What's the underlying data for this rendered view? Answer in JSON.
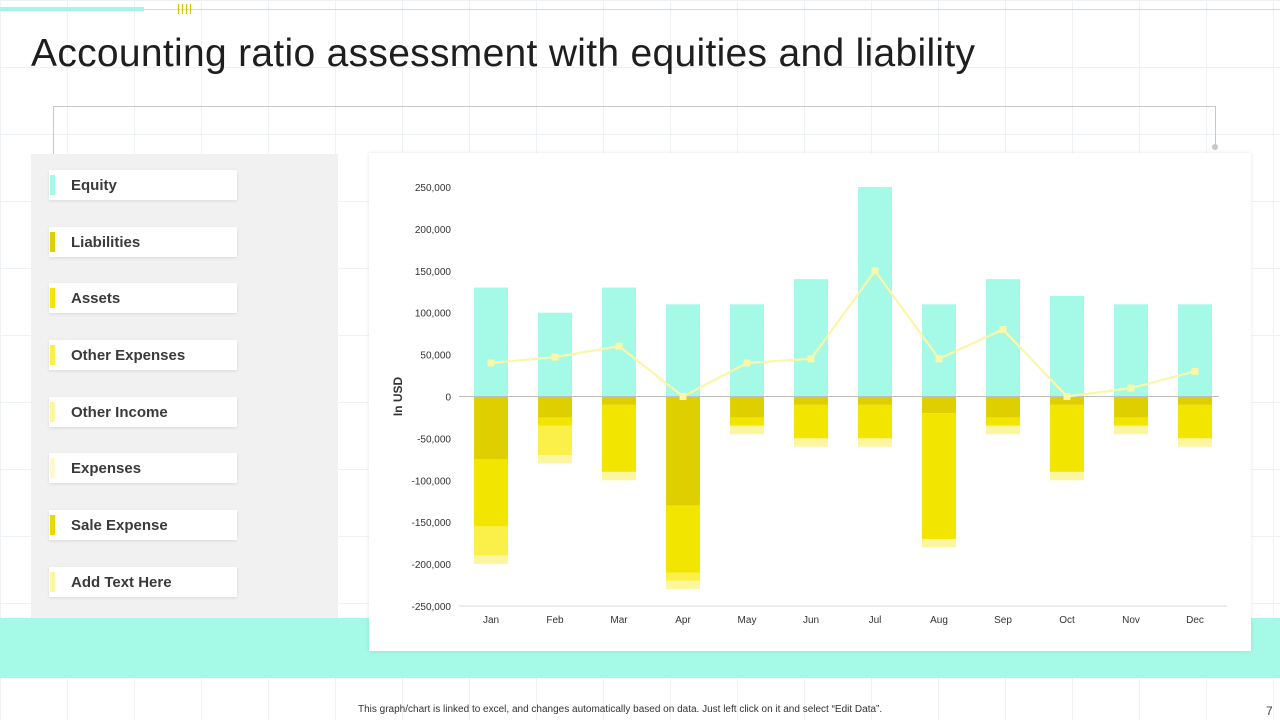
{
  "page": {
    "title": "Accounting ratio assessment with equities and liability",
    "footnote": "This graph/chart is linked to excel, and changes automatically based on data. Just left click on it and select “Edit Data”.",
    "page_number": "7"
  },
  "legend": {
    "items": [
      {
        "label": "Equity",
        "color": "#a4f9e7"
      },
      {
        "label": "Liabilities",
        "color": "#ddcf00"
      },
      {
        "label": "Assets",
        "color": "#f2e600"
      },
      {
        "label": "Other Expenses",
        "color": "#fbef4a"
      },
      {
        "label": "Other Income",
        "color": "#fdf6a0"
      },
      {
        "label": "Expenses",
        "color": "#fefad0"
      },
      {
        "label": "Sale Expense",
        "color": "#e9d900"
      },
      {
        "label": "Add  Text Here",
        "color": "#fdf6a0"
      }
    ]
  },
  "chart_data": {
    "type": "bar",
    "title": "",
    "xlabel": "",
    "ylabel": "In USD",
    "ylim": [
      -250000,
      250000
    ],
    "yticks": [
      250000,
      200000,
      150000,
      100000,
      50000,
      0,
      -50000,
      -100000,
      -150000,
      -200000,
      -250000
    ],
    "ytick_labels": [
      "250,000",
      "200,000",
      "150,000",
      "100,000",
      "50,000",
      "0",
      "-50,000",
      "-100,000",
      "-150,000",
      "-200,000",
      "-250,000"
    ],
    "categories": [
      "Jan",
      "Feb",
      "Mar",
      "Apr",
      "May",
      "Jun",
      "Jul",
      "Aug",
      "Sep",
      "Oct",
      "Nov",
      "Dec"
    ],
    "stacked": true,
    "series": [
      {
        "name": "Equity",
        "kind": "bar",
        "color": "#a4f9e7",
        "values": [
          130000,
          100000,
          130000,
          110000,
          110000,
          140000,
          250000,
          110000,
          140000,
          120000,
          110000,
          110000
        ]
      },
      {
        "name": "Liabilities",
        "kind": "bar",
        "color": "#ddcf00",
        "values": [
          -75000,
          -25000,
          -10000,
          -130000,
          -25000,
          -10000,
          -10000,
          -20000,
          -25000,
          -10000,
          -25000,
          -10000
        ]
      },
      {
        "name": "Assets",
        "kind": "bar",
        "color": "#f2e600",
        "values": [
          -80000,
          -10000,
          -80000,
          -80000,
          -10000,
          -40000,
          -40000,
          -150000,
          -10000,
          -80000,
          -10000,
          -40000
        ]
      },
      {
        "name": "Other Expenses",
        "kind": "bar",
        "color": "#fbef4a",
        "values": [
          -35000,
          -35000,
          0,
          -10000,
          0,
          0,
          0,
          0,
          0,
          0,
          0,
          0
        ]
      },
      {
        "name": "Other Income",
        "kind": "bar",
        "color": "#fdf6a0",
        "values": [
          -10000,
          -10000,
          -10000,
          -10000,
          -10000,
          -10000,
          -10000,
          -10000,
          -10000,
          -10000,
          -10000,
          -10000
        ]
      },
      {
        "name": "Sale Expense",
        "kind": "line",
        "color": "#fbf6a8",
        "values": [
          40000,
          47000,
          60000,
          0,
          40000,
          45000,
          150000,
          45000,
          80000,
          0,
          10000,
          30000
        ]
      }
    ]
  }
}
